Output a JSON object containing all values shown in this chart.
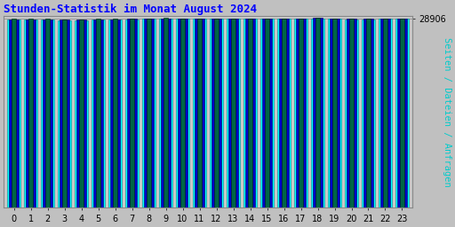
{
  "title": "Stunden-Statistik im Monat August 2024",
  "ylabel": "Seiten / Dateien / Anfragen",
  "xlabel_values": [
    0,
    1,
    2,
    3,
    4,
    5,
    6,
    7,
    8,
    9,
    10,
    11,
    12,
    13,
    14,
    15,
    16,
    17,
    18,
    19,
    20,
    21,
    22,
    23
  ],
  "ytick_label": "28906",
  "ytick_value": 28906,
  "background_color": "#c0c0c0",
  "plot_bg_color": "#c8c8c8",
  "title_color": "#0000ff",
  "ylabel_color": "#00cccc",
  "bar_anfragen": [
    28710,
    28690,
    28680,
    28640,
    28610,
    28690,
    28710,
    28750,
    28820,
    28870,
    28820,
    28800,
    28820,
    28810,
    28810,
    28810,
    28805,
    28800,
    28870,
    28820,
    28740,
    28730,
    28790,
    28790
  ],
  "bar_dateien": [
    28780,
    28770,
    28750,
    28720,
    28700,
    28760,
    28780,
    28810,
    28870,
    28910,
    28870,
    28850,
    28870,
    28850,
    28850,
    28850,
    28845,
    28845,
    28920,
    28865,
    28810,
    28800,
    28840,
    28825
  ],
  "bar_seiten": [
    28820,
    28810,
    28790,
    28760,
    28750,
    28800,
    28815,
    28845,
    28900,
    28940,
    28905,
    28885,
    28895,
    28885,
    28885,
    28885,
    28875,
    28875,
    28950,
    28900,
    28850,
    28830,
    28870,
    28855
  ],
  "color_anfragen": "#00ffff",
  "color_dateien": "#0000cc",
  "color_seiten": "#006644",
  "ymin": 0,
  "ymax": 29200,
  "bar_width": 0.75,
  "title_fontsize": 9,
  "tick_fontsize": 7,
  "ylabel_fontsize": 7.5
}
